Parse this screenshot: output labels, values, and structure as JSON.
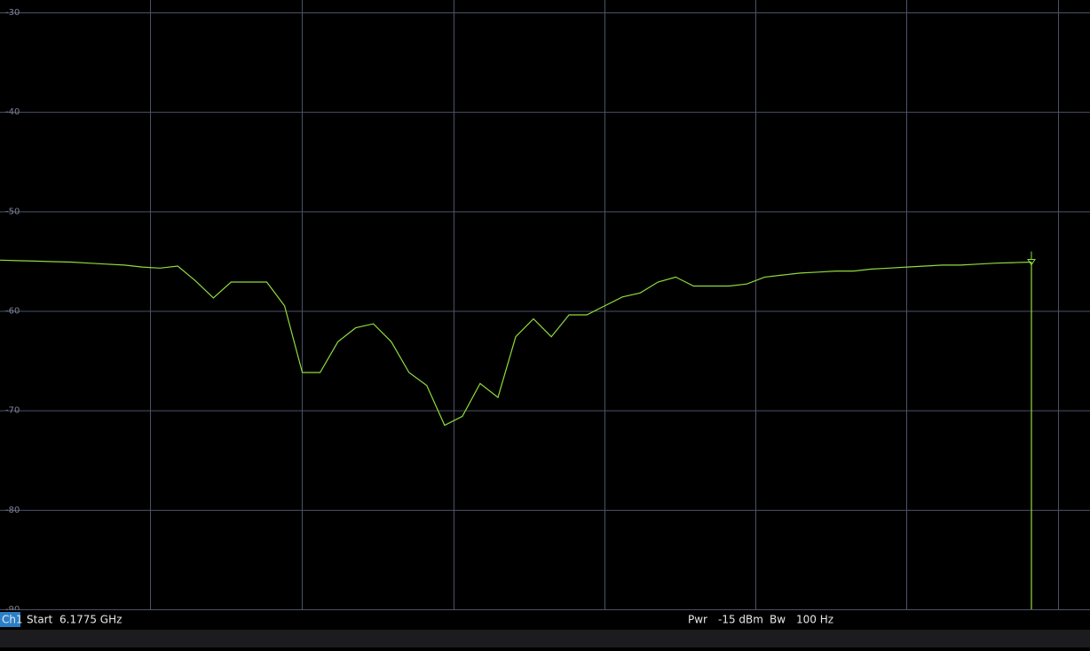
{
  "chart_data": {
    "type": "line",
    "ylim": [
      -90,
      -30
    ],
    "yticks": [
      -30,
      -40,
      -50,
      -60,
      -70,
      -80,
      -90
    ],
    "grid": true,
    "series": [
      {
        "color": "#8fdc3c",
        "values": [
          -54.9,
          -54.95,
          -55.0,
          -55.05,
          -55.1,
          -55.2,
          -55.3,
          -55.4,
          -55.6,
          -55.7,
          -55.5,
          -57.0,
          -58.7,
          -57.1,
          -57.1,
          -57.1,
          -59.5,
          -66.2,
          -66.2,
          -63.1,
          -61.7,
          -61.3,
          -63.1,
          -66.2,
          -67.5,
          -71.5,
          -70.6,
          -67.3,
          -68.7,
          -62.6,
          -60.8,
          -62.6,
          -60.4,
          -60.4,
          -59.5,
          -58.6,
          -58.2,
          -57.1,
          -56.6,
          -57.5,
          -57.5,
          -57.5,
          -57.3,
          -56.6,
          -56.4,
          -56.2,
          -56.1,
          -56.0,
          -56.0,
          -55.8,
          -55.7,
          -55.6,
          -55.5,
          -55.4,
          -55.4,
          -55.3,
          -55.2,
          -55.15,
          -55.1
        ]
      }
    ]
  },
  "status_bar": {
    "channel": "Ch1",
    "start_label": "Start",
    "start_value": "6.1775 GHz",
    "power_label": "Pwr",
    "power_value": "-15 dBm",
    "bw_label": "Bw",
    "bw_value": "100 Hz"
  }
}
